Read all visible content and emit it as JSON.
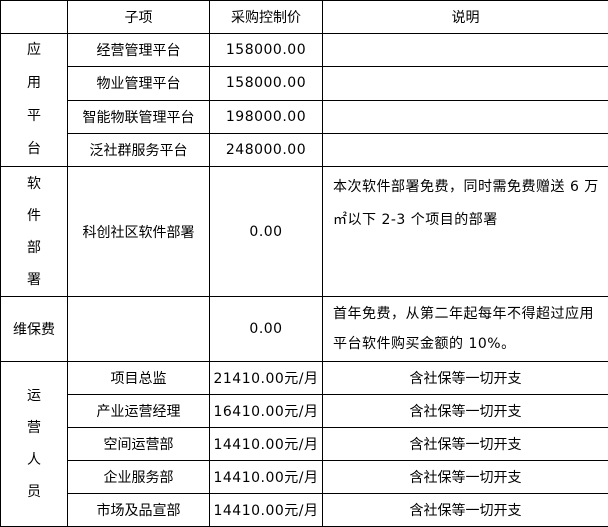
{
  "header": {
    "category": "",
    "item": "子项",
    "price": "采购控制价",
    "note": "说明"
  },
  "groups": {
    "platform": {
      "label_chars": [
        "应",
        "用",
        "平",
        "台"
      ],
      "rows": [
        {
          "item": "经营管理平台",
          "price": "158000.00",
          "note": ""
        },
        {
          "item": "物业管理平台",
          "price": "158000.00",
          "note": ""
        },
        {
          "item": "智能物联管理平台",
          "price": "198000.00",
          "note": ""
        },
        {
          "item": "泛社群服务平台",
          "price": "248000.00",
          "note": ""
        }
      ]
    },
    "software": {
      "label_chars": [
        "软",
        "件",
        "部",
        "署"
      ],
      "item": "科创社区软件部署",
      "price": "0.00",
      "note": "本次软件部署免费，同时需免费赠送 6 万㎡以下 2-3 个项目的部署"
    },
    "maintenance": {
      "label": "维保费",
      "item": "",
      "price": "0.00",
      "note": "首年免费，从第二年起每年不得超过应用平台软件购买金额的 10%。"
    },
    "staff": {
      "label_chars": [
        "运",
        "营",
        "人",
        "员"
      ],
      "rows": [
        {
          "item": "项目总监",
          "price": "21410.00元/月",
          "note": "含社保等一切开支"
        },
        {
          "item": "产业运营经理",
          "price": "16410.00元/月",
          "note": "含社保等一切开支"
        },
        {
          "item": "空间运营部",
          "price": "14410.00元/月",
          "note": "含社保等一切开支"
        },
        {
          "item": "企业服务部",
          "price": "14410.00元/月",
          "note": "含社保等一切开支"
        },
        {
          "item": "市场及品宣部",
          "price": "14410.00元/月",
          "note": "含社保等一切开支"
        }
      ]
    }
  }
}
